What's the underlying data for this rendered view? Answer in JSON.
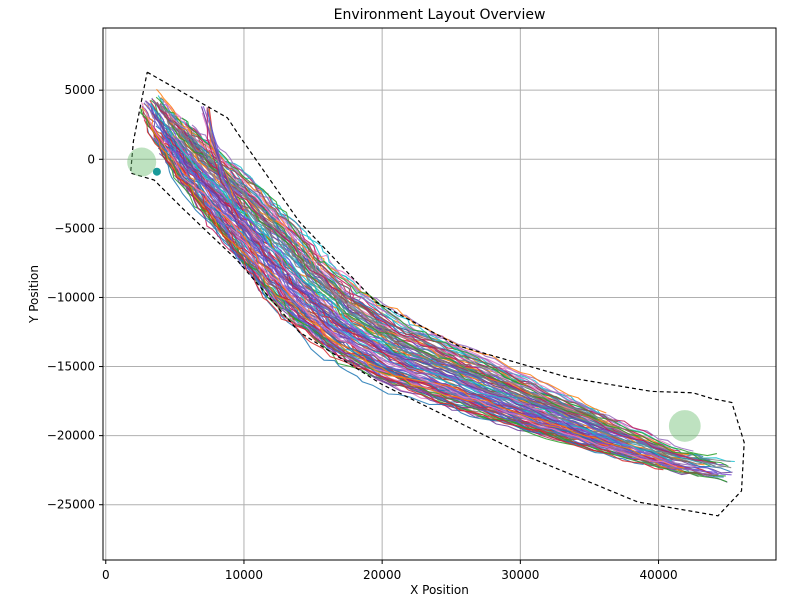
{
  "chart_data": {
    "type": "line",
    "title": "Environment Layout Overview",
    "xlabel": "X Position",
    "ylabel": "Y Position",
    "xlim": [
      -200,
      48500
    ],
    "ylim": [
      -29000,
      9500
    ],
    "x_ticks": [
      0,
      10000,
      20000,
      30000,
      40000
    ],
    "y_ticks": [
      5000,
      0,
      -5000,
      -10000,
      -15000,
      -20000,
      -25000
    ],
    "x_tick_labels": [
      "0",
      "10000",
      "20000",
      "30000",
      "40000"
    ],
    "y_tick_labels": [
      "5000",
      "0",
      "−5000",
      "−10000",
      "−15000",
      "−20000",
      "−25000"
    ],
    "grid": true,
    "boundary": {
      "style": "dashed",
      "color": "#000000",
      "points": [
        [
          3000,
          6300
        ],
        [
          8800,
          3000
        ],
        [
          9800,
          1500
        ],
        [
          14000,
          -4500
        ],
        [
          19500,
          -10300
        ],
        [
          25500,
          -13500
        ],
        [
          33500,
          -15800
        ],
        [
          39500,
          -16800
        ],
        [
          42500,
          -16900
        ],
        [
          43800,
          -17300
        ],
        [
          45300,
          -17600
        ],
        [
          46200,
          -20500
        ],
        [
          46000,
          -24000
        ],
        [
          44300,
          -25800
        ],
        [
          38500,
          -24800
        ],
        [
          30500,
          -21500
        ],
        [
          20000,
          -16300
        ],
        [
          14000,
          -12500
        ],
        [
          9500,
          -7300
        ],
        [
          5500,
          -3500
        ],
        [
          3500,
          -1500
        ],
        [
          1800,
          -1000
        ],
        [
          2000,
          1300
        ],
        [
          3000,
          6300
        ]
      ]
    },
    "zones": [
      {
        "x": 2600,
        "y": -200,
        "radius": 1050,
        "color": "#6fbf73",
        "opacity": 0.45
      },
      {
        "x": 41900,
        "y": -19300,
        "radius": 1150,
        "color": "#6fbf73",
        "opacity": 0.45
      }
    ],
    "markers": [
      {
        "x": 3700,
        "y": -900,
        "color": "#1a9a9a"
      }
    ],
    "trajectory_centerline": [
      [
        3000,
        4500
      ],
      [
        4500,
        2200
      ],
      [
        6500,
        -300
      ],
      [
        9000,
        -3000
      ],
      [
        11500,
        -5800
      ],
      [
        14000,
        -8800
      ],
      [
        17000,
        -11600
      ],
      [
        21000,
        -14000
      ],
      [
        26000,
        -16000
      ],
      [
        31000,
        -18000
      ],
      [
        36000,
        -19900
      ],
      [
        41000,
        -21700
      ],
      [
        45500,
        -22600
      ]
    ],
    "branch_centerline": [
      [
        7200,
        3600
      ],
      [
        7700,
        1200
      ],
      [
        8600,
        -1500
      ],
      [
        9600,
        -3500
      ]
    ],
    "trajectory_count": 120,
    "trajectory_colors": [
      "#1f77b4",
      "#ff7f0e",
      "#2ca02c",
      "#d62728",
      "#9467bd",
      "#8c564b",
      "#e377c2",
      "#7f7f7f",
      "#17becf",
      "#7b4fd6",
      "#5b5bd6",
      "#3a8ea8",
      "#c2185b",
      "#6a3d9a"
    ]
  }
}
